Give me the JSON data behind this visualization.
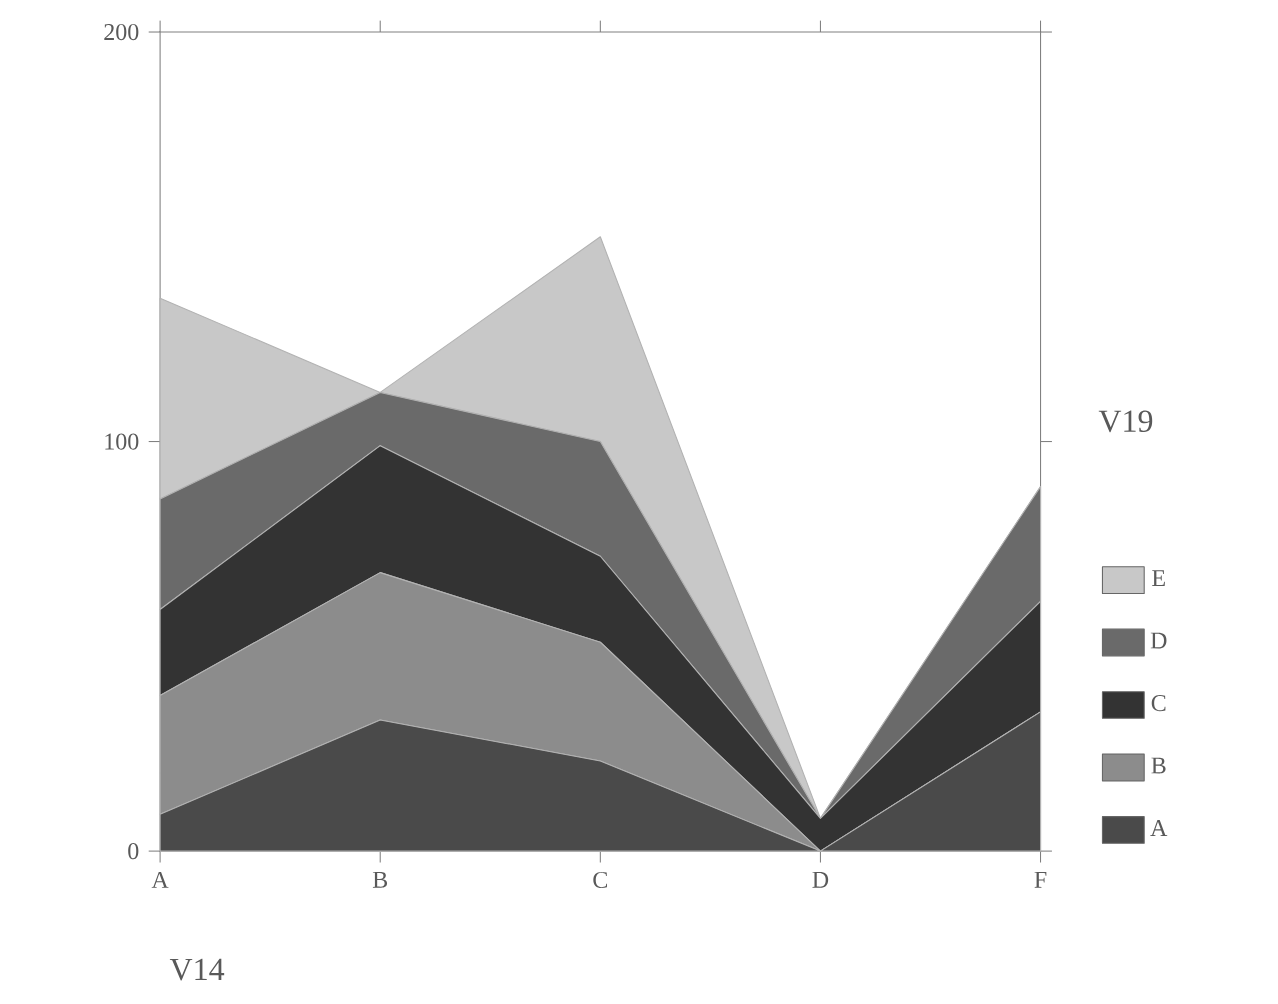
{
  "chart_data": {
    "type": "area",
    "stacked": true,
    "xlabel": "V14",
    "legend_title": "V19",
    "legend": "right",
    "categories": [
      "A",
      "B",
      "C",
      "D",
      "F"
    ],
    "ylim": [
      0,
      200
    ],
    "yticks": [
      0,
      100,
      200
    ],
    "series": [
      {
        "name": "A",
        "color": "#4a4a4a",
        "values": [
          9,
          32,
          22,
          0,
          34
        ]
      },
      {
        "name": "B",
        "color": "#8c8c8c",
        "values": [
          29,
          36,
          29,
          0,
          0
        ]
      },
      {
        "name": "C",
        "color": "#333333",
        "values": [
          21,
          31,
          21,
          8,
          27
        ]
      },
      {
        "name": "D",
        "color": "#6a6a6a",
        "values": [
          27,
          13,
          28,
          0,
          28
        ]
      },
      {
        "name": "E",
        "color": "#c8c8c8",
        "values": [
          49,
          0,
          50,
          0,
          0
        ]
      }
    ]
  }
}
